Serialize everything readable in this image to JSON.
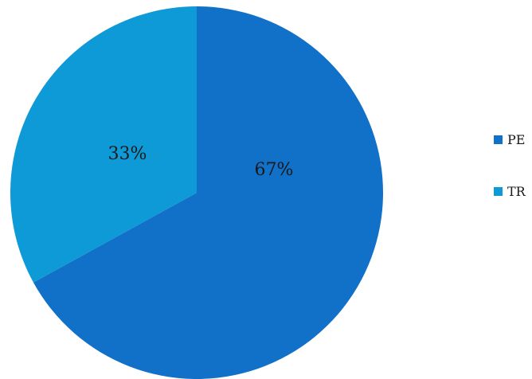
{
  "chart_data": {
    "type": "pie",
    "title": "",
    "start_angle_deg": 0,
    "direction": "clockwise",
    "slices": [
      {
        "name": "PE",
        "value": 67,
        "label": "67%",
        "color": "#1170C8"
      },
      {
        "name": "TR",
        "value": 33,
        "label": "33%",
        "color": "#0D9AD6"
      }
    ],
    "legend": {
      "placement": "right",
      "entries": [
        {
          "name": "PE",
          "color": "#1170C8"
        },
        {
          "name": "TR",
          "color": "#0D9AD6"
        }
      ]
    }
  }
}
